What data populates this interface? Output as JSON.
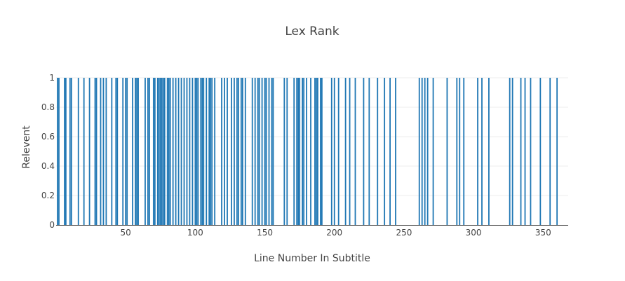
{
  "chart_data": {
    "type": "bar",
    "title": "Lex Rank",
    "xlabel": "Line Number In Subtitle",
    "ylabel": "Relevent",
    "xlim": [
      0,
      368
    ],
    "ylim": [
      0,
      1
    ],
    "x_ticks": [
      50,
      100,
      150,
      200,
      250,
      300,
      350
    ],
    "y_ticks": [
      0,
      0.2,
      0.4,
      0.6,
      0.8,
      1
    ],
    "y_tick_labels": [
      "0",
      "0.2",
      "0.4",
      "0.6",
      "0.8",
      "1"
    ],
    "grid": true,
    "bar_color": "#1f77b4",
    "series": [
      {
        "x": [
          1,
          2,
          6,
          7,
          10,
          11,
          16,
          20,
          24,
          28,
          29,
          32,
          34,
          36,
          40,
          43,
          44,
          48,
          50,
          51,
          55,
          57,
          58,
          59,
          64,
          66,
          67,
          70,
          71,
          73,
          74,
          75,
          76,
          77,
          78,
          80,
          81,
          82,
          84,
          86,
          88,
          90,
          92,
          94,
          96,
          98,
          100,
          101,
          102,
          104,
          105,
          106,
          108,
          110,
          111,
          112,
          114,
          119,
          121,
          123,
          126,
          128,
          130,
          131,
          133,
          134,
          136,
          141,
          143,
          145,
          146,
          148,
          150,
          151,
          153,
          155,
          156,
          164,
          166,
          171,
          173,
          174,
          175,
          177,
          178,
          180,
          183,
          186,
          187,
          188,
          190,
          191,
          198,
          200,
          203,
          208,
          211,
          215,
          221,
          225,
          231,
          236,
          240,
          244,
          261,
          263,
          265,
          267,
          271,
          281,
          288,
          290,
          293,
          303,
          306,
          311,
          326,
          328,
          334,
          337,
          341,
          348,
          355,
          360
        ],
        "values": [
          1,
          1,
          1,
          1,
          1,
          1,
          1,
          1,
          1,
          1,
          1,
          1,
          1,
          1,
          1,
          1,
          1,
          1,
          1,
          1,
          1,
          1,
          1,
          1,
          1,
          1,
          1,
          1,
          1,
          1,
          1,
          1,
          1,
          1,
          1,
          1,
          1,
          1,
          1,
          1,
          1,
          1,
          1,
          1,
          1,
          1,
          1,
          1,
          1,
          1,
          1,
          1,
          1,
          1,
          1,
          1,
          1,
          1,
          1,
          1,
          1,
          1,
          1,
          1,
          1,
          1,
          1,
          1,
          1,
          1,
          1,
          1,
          1,
          1,
          1,
          1,
          1,
          1,
          1,
          1,
          1,
          1,
          1,
          1,
          1,
          1,
          1,
          1,
          1,
          1,
          1,
          1,
          1,
          1,
          1,
          1,
          1,
          1,
          1,
          1,
          1,
          1,
          1,
          1,
          1,
          1,
          1,
          1,
          1,
          1,
          1,
          1,
          1,
          1,
          1,
          1,
          1,
          1,
          1,
          1,
          1,
          1,
          1,
          1
        ]
      }
    ]
  }
}
